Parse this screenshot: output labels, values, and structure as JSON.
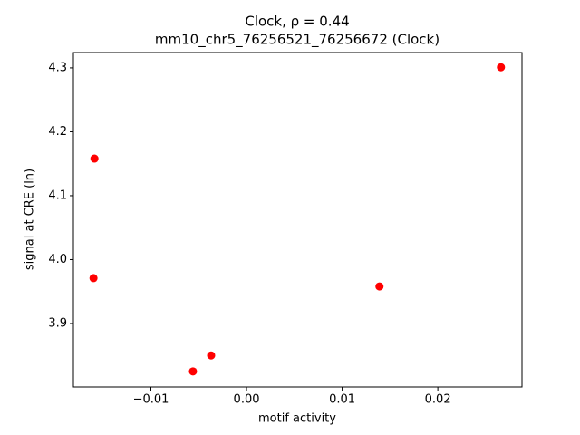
{
  "chart_data": {
    "type": "scatter",
    "title": "Clock, ρ = 0.44",
    "subtitle": "mm10_chr5_76256521_76256672 (Clock)",
    "x_label": "motif activity",
    "y_label": "signal at CRE (ln)",
    "color": "#ff0000",
    "x": [
      -0.0159,
      -0.016,
      -0.0056,
      -0.0037,
      0.0139,
      0.0266
    ],
    "values": [
      4.158,
      3.971,
      3.825,
      3.85,
      3.958,
      4.301
    ],
    "xlim": [
      -0.0181,
      0.0288
    ],
    "ylim": [
      3.8007,
      4.324
    ],
    "xticks": [
      {
        "value": -0.01,
        "label": "−0.01"
      },
      {
        "value": 0,
        "label": "0.00"
      },
      {
        "value": 0.01,
        "label": "0.01"
      },
      {
        "value": 0.02,
        "label": "0.02"
      }
    ],
    "yticks": [
      {
        "value": 3.9,
        "label": "3.9"
      },
      {
        "value": 4.0,
        "label": "4.0"
      },
      {
        "value": 4.1,
        "label": "4.1"
      },
      {
        "value": 4.2,
        "label": "4.2"
      },
      {
        "value": 4.3,
        "label": "4.3"
      }
    ]
  }
}
